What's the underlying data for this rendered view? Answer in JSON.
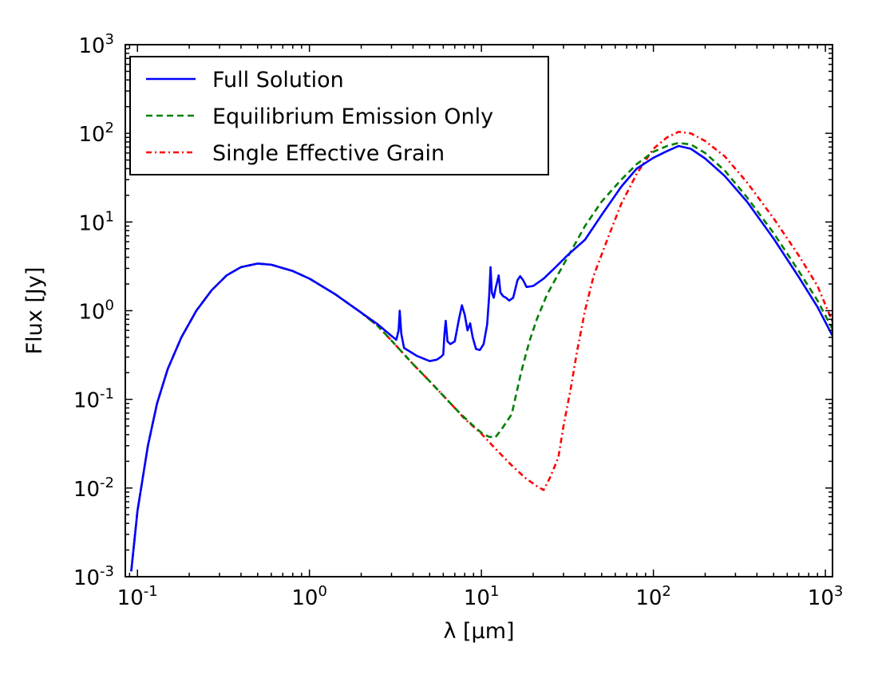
{
  "chart_data": {
    "type": "line",
    "xscale": "log",
    "yscale": "log",
    "xlim": [
      0.085,
      1100
    ],
    "ylim": [
      0.001,
      1000
    ],
    "xlabel": "λ [μm]",
    "ylabel": "Flux [Jy]",
    "x_ticks": [
      {
        "base": "10",
        "exp": "-1",
        "value": 0.1
      },
      {
        "base": "10",
        "exp": "0",
        "value": 1
      },
      {
        "base": "10",
        "exp": "1",
        "value": 10
      },
      {
        "base": "10",
        "exp": "2",
        "value": 100
      },
      {
        "base": "10",
        "exp": "3",
        "value": 1000
      }
    ],
    "y_ticks": [
      {
        "base": "10",
        "exp": "-3",
        "value": 0.001
      },
      {
        "base": "10",
        "exp": "-2",
        "value": 0.01
      },
      {
        "base": "10",
        "exp": "-1",
        "value": 0.1
      },
      {
        "base": "10",
        "exp": "0",
        "value": 1
      },
      {
        "base": "10",
        "exp": "1",
        "value": 10
      },
      {
        "base": "10",
        "exp": "2",
        "value": 100
      },
      {
        "base": "10",
        "exp": "3",
        "value": 1000
      }
    ],
    "legend_position": "upper-left",
    "series": [
      {
        "name": "Full Solution",
        "color": "#0000ff",
        "style": "solid",
        "points": [
          [
            0.092,
            0.00115
          ],
          [
            0.1,
            0.0055
          ],
          [
            0.115,
            0.03
          ],
          [
            0.13,
            0.09
          ],
          [
            0.15,
            0.22
          ],
          [
            0.18,
            0.5
          ],
          [
            0.22,
            1.0
          ],
          [
            0.27,
            1.7
          ],
          [
            0.33,
            2.5
          ],
          [
            0.4,
            3.1
          ],
          [
            0.5,
            3.4
          ],
          [
            0.6,
            3.3
          ],
          [
            0.8,
            2.8
          ],
          [
            1.0,
            2.3
          ],
          [
            1.4,
            1.55
          ],
          [
            2.0,
            0.95
          ],
          [
            2.5,
            0.7
          ],
          [
            3.0,
            0.52
          ],
          [
            3.2,
            0.47
          ],
          [
            3.3,
            0.6
          ],
          [
            3.35,
            1.0
          ],
          [
            3.42,
            0.55
          ],
          [
            3.55,
            0.38
          ],
          [
            4.2,
            0.31
          ],
          [
            5.0,
            0.27
          ],
          [
            5.5,
            0.28
          ],
          [
            5.8,
            0.3
          ],
          [
            6.0,
            0.32
          ],
          [
            6.1,
            0.55
          ],
          [
            6.2,
            0.77
          ],
          [
            6.35,
            0.45
          ],
          [
            6.6,
            0.42
          ],
          [
            7.0,
            0.45
          ],
          [
            7.4,
            0.8
          ],
          [
            7.7,
            1.15
          ],
          [
            8.0,
            0.9
          ],
          [
            8.3,
            0.6
          ],
          [
            8.6,
            0.72
          ],
          [
            8.9,
            0.5
          ],
          [
            9.3,
            0.37
          ],
          [
            9.8,
            0.36
          ],
          [
            10.3,
            0.42
          ],
          [
            10.8,
            0.7
          ],
          [
            11.1,
            1.5
          ],
          [
            11.3,
            3.1
          ],
          [
            11.5,
            1.6
          ],
          [
            11.8,
            1.4
          ],
          [
            12.1,
            1.8
          ],
          [
            12.6,
            2.5
          ],
          [
            12.9,
            1.6
          ],
          [
            13.4,
            1.45
          ],
          [
            13.9,
            1.4
          ],
          [
            14.5,
            1.3
          ],
          [
            15.3,
            1.4
          ],
          [
            16.2,
            2.2
          ],
          [
            16.8,
            2.45
          ],
          [
            17.5,
            2.2
          ],
          [
            18.3,
            1.85
          ],
          [
            20,
            1.9
          ],
          [
            23,
            2.3
          ],
          [
            27,
            3.1
          ],
          [
            32,
            4.3
          ],
          [
            40,
            6.3
          ],
          [
            50,
            12
          ],
          [
            65,
            25
          ],
          [
            80,
            40
          ],
          [
            100,
            53
          ],
          [
            120,
            63
          ],
          [
            140,
            72
          ],
          [
            165,
            67
          ],
          [
            200,
            52
          ],
          [
            260,
            33
          ],
          [
            350,
            17
          ],
          [
            500,
            6.5
          ],
          [
            700,
            2.4
          ],
          [
            900,
            1.1
          ],
          [
            1100,
            0.52
          ]
        ]
      },
      {
        "name": "Equilibrium Emission Only",
        "color": "#007f00",
        "style": "dashed",
        "points": [
          [
            0.092,
            0.00115
          ],
          [
            0.1,
            0.0055
          ],
          [
            0.115,
            0.03
          ],
          [
            0.13,
            0.09
          ],
          [
            0.15,
            0.22
          ],
          [
            0.18,
            0.5
          ],
          [
            0.22,
            1.0
          ],
          [
            0.27,
            1.7
          ],
          [
            0.33,
            2.5
          ],
          [
            0.4,
            3.1
          ],
          [
            0.5,
            3.4
          ],
          [
            0.6,
            3.3
          ],
          [
            0.8,
            2.8
          ],
          [
            1.0,
            2.3
          ],
          [
            1.4,
            1.55
          ],
          [
            2.0,
            0.95
          ],
          [
            2.5,
            0.67
          ],
          [
            3.0,
            0.46
          ],
          [
            4.0,
            0.25
          ],
          [
            5.0,
            0.16
          ],
          [
            6.0,
            0.11
          ],
          [
            7.0,
            0.08
          ],
          [
            8.0,
            0.062
          ],
          [
            9.0,
            0.05
          ],
          [
            10.0,
            0.042
          ],
          [
            11.0,
            0.038
          ],
          [
            12.0,
            0.037
          ],
          [
            13.0,
            0.045
          ],
          [
            15.0,
            0.068
          ],
          [
            17.0,
            0.2
          ],
          [
            19.0,
            0.45
          ],
          [
            21.0,
            0.8
          ],
          [
            24.0,
            1.5
          ],
          [
            28.0,
            2.6
          ],
          [
            33.0,
            4.6
          ],
          [
            40.0,
            9
          ],
          [
            50.0,
            17
          ],
          [
            65.0,
            30
          ],
          [
            80.0,
            45
          ],
          [
            100.0,
            62
          ],
          [
            120.0,
            72
          ],
          [
            140.0,
            78
          ],
          [
            165.0,
            75
          ],
          [
            200.0,
            60
          ],
          [
            260.0,
            38
          ],
          [
            350.0,
            19
          ],
          [
            500.0,
            7.5
          ],
          [
            700.0,
            2.8
          ],
          [
            900.0,
            1.3
          ],
          [
            1100.0,
            0.62
          ]
        ]
      },
      {
        "name": "Single Effective Grain",
        "color": "#ff0000",
        "style": "dashdot",
        "points": [
          [
            0.092,
            0.00115
          ],
          [
            0.1,
            0.0055
          ],
          [
            0.115,
            0.03
          ],
          [
            0.13,
            0.09
          ],
          [
            0.15,
            0.22
          ],
          [
            0.18,
            0.5
          ],
          [
            0.22,
            1.0
          ],
          [
            0.27,
            1.7
          ],
          [
            0.33,
            2.5
          ],
          [
            0.4,
            3.1
          ],
          [
            0.5,
            3.4
          ],
          [
            0.6,
            3.3
          ],
          [
            0.8,
            2.8
          ],
          [
            1.0,
            2.3
          ],
          [
            1.4,
            1.55
          ],
          [
            2.0,
            0.95
          ],
          [
            2.5,
            0.67
          ],
          [
            3.0,
            0.46
          ],
          [
            4.0,
            0.25
          ],
          [
            5.0,
            0.16
          ],
          [
            6.0,
            0.11
          ],
          [
            7.0,
            0.08
          ],
          [
            8.0,
            0.06
          ],
          [
            10.0,
            0.041
          ],
          [
            12.0,
            0.028
          ],
          [
            15.0,
            0.018
          ],
          [
            18.0,
            0.013
          ],
          [
            21.0,
            0.0105
          ],
          [
            23.0,
            0.0095
          ],
          [
            25.0,
            0.013
          ],
          [
            28.0,
            0.022
          ],
          [
            30.0,
            0.05
          ],
          [
            33.0,
            0.13
          ],
          [
            36.0,
            0.35
          ],
          [
            40.0,
            1.0
          ],
          [
            45.0,
            2.5
          ],
          [
            55.0,
            7
          ],
          [
            65.0,
            16
          ],
          [
            80.0,
            35
          ],
          [
            100.0,
            67
          ],
          [
            120.0,
            90
          ],
          [
            140.0,
            104
          ],
          [
            165.0,
            100
          ],
          [
            200.0,
            82
          ],
          [
            260.0,
            55
          ],
          [
            350.0,
            28
          ],
          [
            500.0,
            11
          ],
          [
            700.0,
            4.2
          ],
          [
            900.0,
            1.9
          ],
          [
            1100.0,
            0.75
          ]
        ]
      }
    ]
  }
}
